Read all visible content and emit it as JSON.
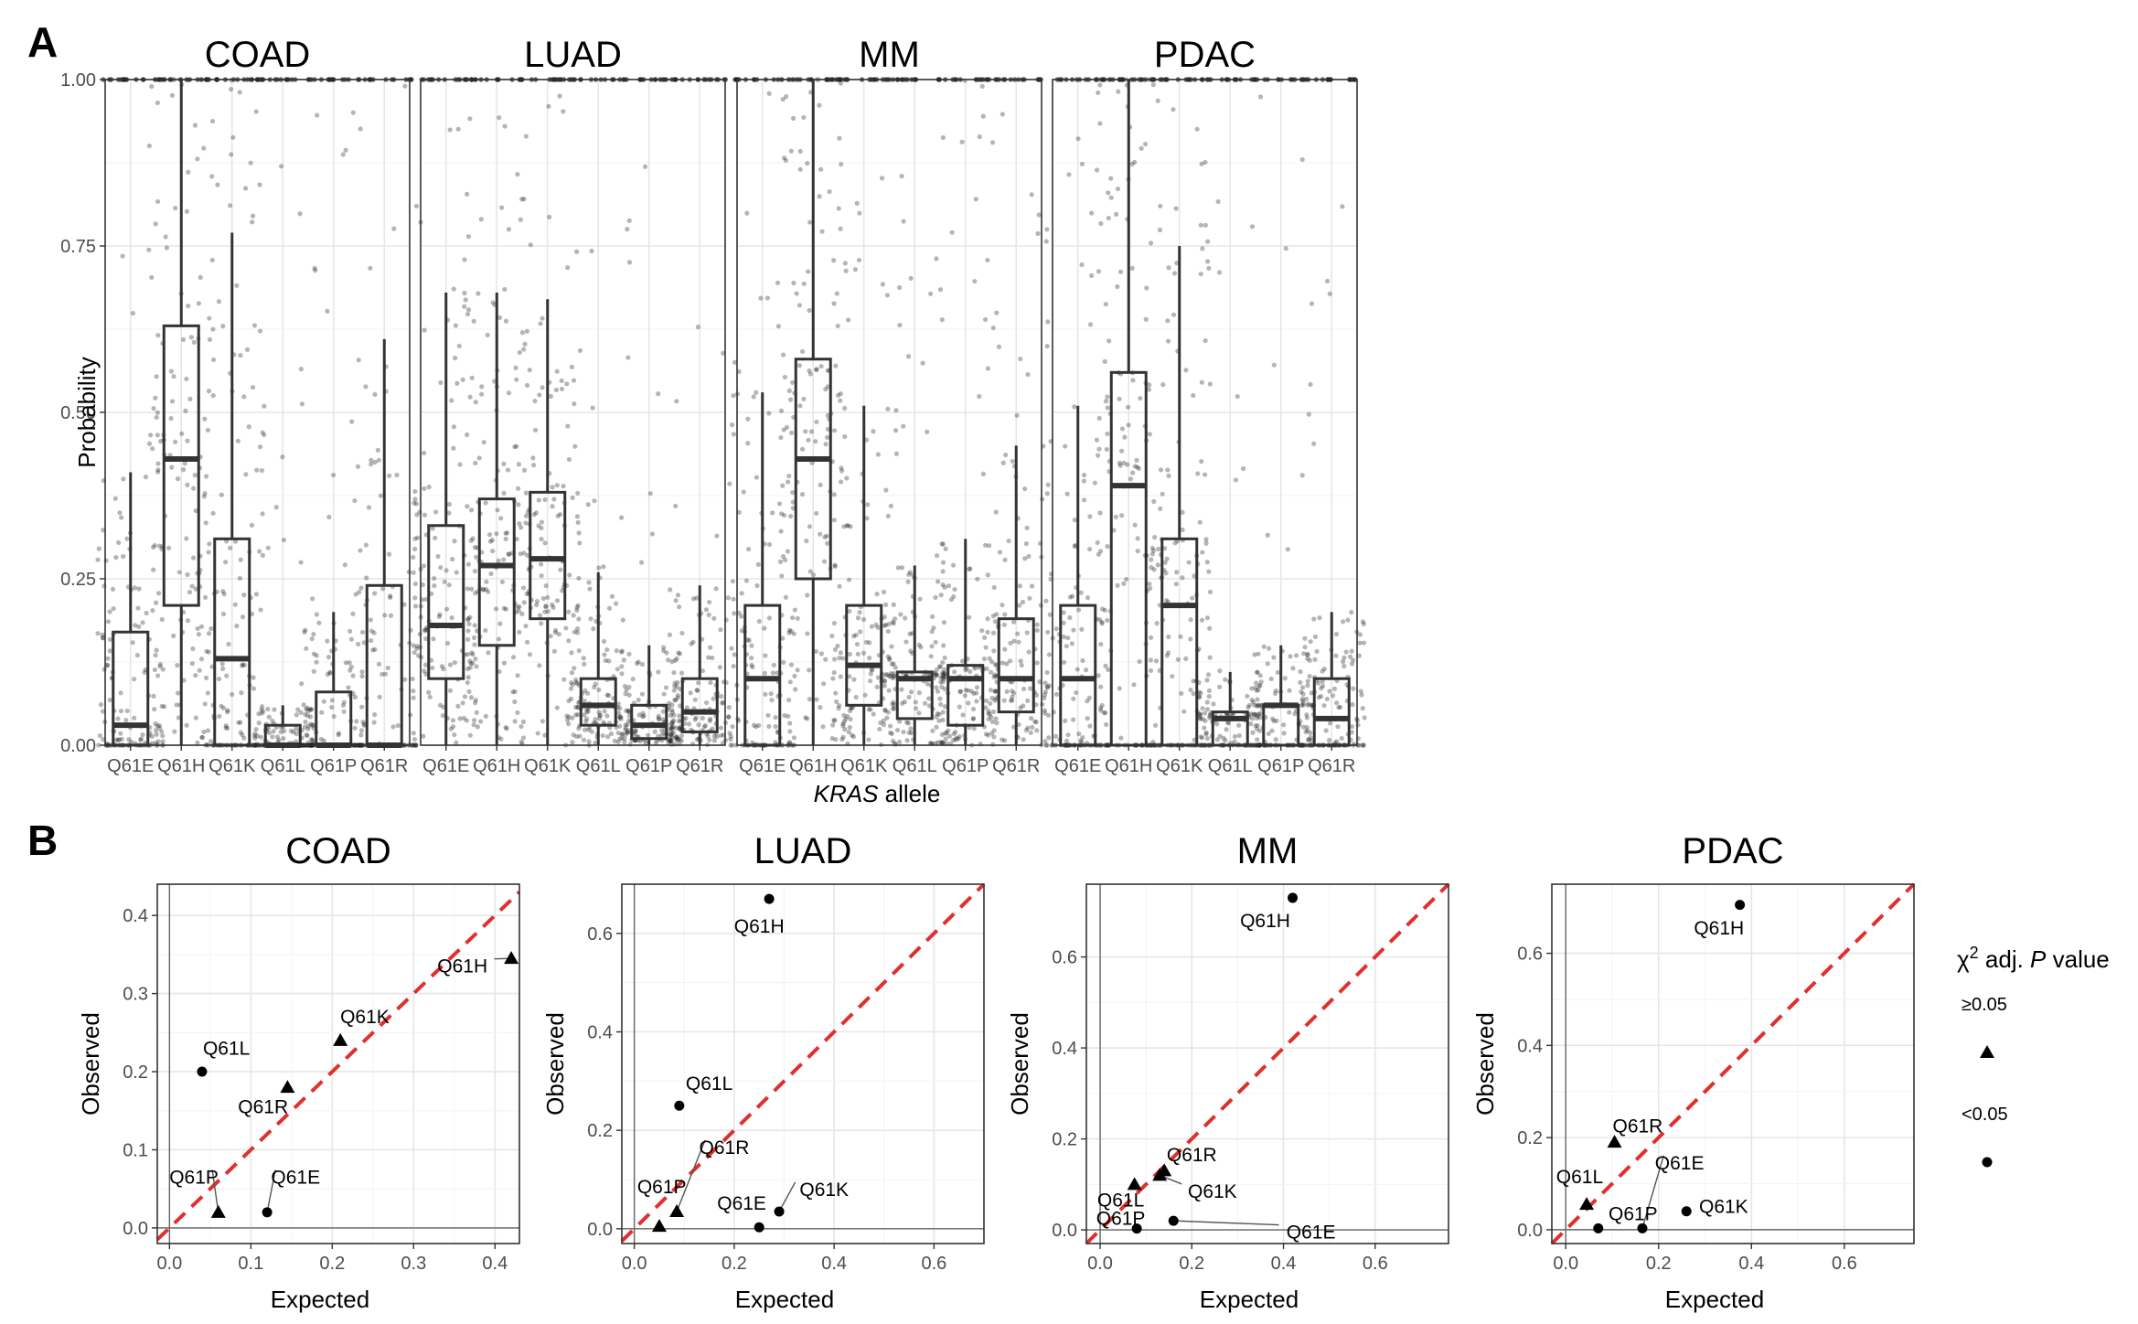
{
  "figure": {
    "panel_a_letter": "A",
    "panel_b_letter": "B"
  },
  "chart_data": [
    {
      "type": "box",
      "panel": "A",
      "facets": [
        "COAD",
        "LUAD",
        "MM",
        "PDAC"
      ],
      "categories": [
        "Q61E",
        "Q61H",
        "Q61K",
        "Q61L",
        "Q61P",
        "Q61R"
      ],
      "ylabel": "Probability",
      "xlabel_italic": "KRAS",
      "xlabel_rest": " allele",
      "ylim": [
        0,
        1
      ],
      "yticks": [
        0,
        0.25,
        0.5,
        0.75,
        1
      ],
      "ytick_labels": [
        "0.00",
        "0.25",
        "0.50",
        "0.75",
        "1.00"
      ],
      "grid": true,
      "jitter_points": true,
      "boxes": {
        "COAD": [
          {
            "q1": 0.0,
            "median": 0.03,
            "q3": 0.17,
            "whisker_low": 0.0,
            "whisker_high": 0.41
          },
          {
            "q1": 0.21,
            "median": 0.43,
            "q3": 0.63,
            "whisker_low": 0.0,
            "whisker_high": 1.0
          },
          {
            "q1": 0.0,
            "median": 0.13,
            "q3": 0.31,
            "whisker_low": 0.0,
            "whisker_high": 0.77
          },
          {
            "q1": 0.0,
            "median": 0.0,
            "q3": 0.03,
            "whisker_low": 0.0,
            "whisker_high": 0.06
          },
          {
            "q1": 0.0,
            "median": 0.0,
            "q3": 0.08,
            "whisker_low": 0.0,
            "whisker_high": 0.2
          },
          {
            "q1": 0.0,
            "median": 0.0,
            "q3": 0.24,
            "whisker_low": 0.0,
            "whisker_high": 0.61
          }
        ],
        "LUAD": [
          {
            "q1": 0.1,
            "median": 0.18,
            "q3": 0.33,
            "whisker_low": 0.0,
            "whisker_high": 0.68
          },
          {
            "q1": 0.15,
            "median": 0.27,
            "q3": 0.37,
            "whisker_low": 0.0,
            "whisker_high": 0.68
          },
          {
            "q1": 0.19,
            "median": 0.28,
            "q3": 0.38,
            "whisker_low": 0.0,
            "whisker_high": 0.67
          },
          {
            "q1": 0.03,
            "median": 0.06,
            "q3": 0.1,
            "whisker_low": 0.0,
            "whisker_high": 0.26
          },
          {
            "q1": 0.01,
            "median": 0.03,
            "q3": 0.06,
            "whisker_low": 0.0,
            "whisker_high": 0.15
          },
          {
            "q1": 0.02,
            "median": 0.05,
            "q3": 0.1,
            "whisker_low": 0.0,
            "whisker_high": 0.24
          }
        ],
        "MM": [
          {
            "q1": 0.0,
            "median": 0.1,
            "q3": 0.21,
            "whisker_low": 0.0,
            "whisker_high": 0.53
          },
          {
            "q1": 0.25,
            "median": 0.43,
            "q3": 0.58,
            "whisker_low": 0.0,
            "whisker_high": 1.0
          },
          {
            "q1": 0.06,
            "median": 0.12,
            "q3": 0.21,
            "whisker_low": 0.0,
            "whisker_high": 0.51
          },
          {
            "q1": 0.04,
            "median": 0.1,
            "q3": 0.11,
            "whisker_low": 0.0,
            "whisker_high": 0.27
          },
          {
            "q1": 0.03,
            "median": 0.1,
            "q3": 0.12,
            "whisker_low": 0.0,
            "whisker_high": 0.31
          },
          {
            "q1": 0.05,
            "median": 0.1,
            "q3": 0.19,
            "whisker_low": 0.0,
            "whisker_high": 0.45
          }
        ],
        "PDAC": [
          {
            "q1": 0.0,
            "median": 0.1,
            "q3": 0.21,
            "whisker_low": 0.0,
            "whisker_high": 0.51
          },
          {
            "q1": 0.0,
            "median": 0.39,
            "q3": 0.56,
            "whisker_low": 0.0,
            "whisker_high": 1.0
          },
          {
            "q1": 0.0,
            "median": 0.21,
            "q3": 0.31,
            "whisker_low": 0.0,
            "whisker_high": 0.75
          },
          {
            "q1": 0.0,
            "median": 0.04,
            "q3": 0.05,
            "whisker_low": 0.0,
            "whisker_high": 0.11
          },
          {
            "q1": 0.0,
            "median": 0.06,
            "q3": 0.06,
            "whisker_low": 0.0,
            "whisker_high": 0.15
          },
          {
            "q1": 0.0,
            "median": 0.04,
            "q3": 0.1,
            "whisker_low": 0.0,
            "whisker_high": 0.2
          }
        ]
      }
    },
    {
      "type": "scatter",
      "panel": "B",
      "xlabel": "Expected",
      "ylabel": "Observed",
      "reference_line": "y = x",
      "reference_line_color": "#e0302e",
      "legend": {
        "title_prefix": "χ",
        "title_sup": "2",
        "title_mid": " adj. ",
        "title_italic": "P",
        "title_suffix": " value",
        "entries": [
          {
            "label": "≥0.05",
            "shape": "triangle"
          },
          {
            "label": "<0.05",
            "shape": "circle"
          }
        ],
        "placement": "right"
      },
      "facets": [
        {
          "name": "COAD",
          "xlim": [
            -0.015,
            0.43
          ],
          "ylim": [
            -0.02,
            0.44
          ],
          "xticks": [
            0.0,
            0.1,
            0.2,
            0.3,
            0.4
          ],
          "xtick_labels": [
            "0.0",
            "0.1",
            "0.2",
            "0.3",
            "0.4"
          ],
          "yticks": [
            0.0,
            0.1,
            0.2,
            0.3,
            0.4
          ],
          "ytick_labels": [
            "0.0",
            "0.1",
            "0.2",
            "0.3",
            "0.4"
          ],
          "points": [
            {
              "label": "Q61H",
              "x": 0.42,
              "y": 0.345,
              "shape": "triangle",
              "lx": 0.36,
              "ly": 0.335
            },
            {
              "label": "Q61K",
              "x": 0.21,
              "y": 0.24,
              "shape": "triangle",
              "lx": 0.24,
              "ly": 0.27
            },
            {
              "label": "Q61L",
              "x": 0.04,
              "y": 0.2,
              "shape": "circle",
              "lx": 0.07,
              "ly": 0.23
            },
            {
              "label": "Q61R",
              "x": 0.145,
              "y": 0.18,
              "shape": "triangle",
              "lx": 0.115,
              "ly": 0.155
            },
            {
              "label": "Q61P",
              "x": 0.06,
              "y": 0.02,
              "shape": "triangle",
              "lx": 0.03,
              "ly": 0.065
            },
            {
              "label": "Q61E",
              "x": 0.12,
              "y": 0.02,
              "shape": "circle",
              "lx": 0.155,
              "ly": 0.065
            }
          ]
        },
        {
          "name": "LUAD",
          "xlim": [
            -0.025,
            0.7
          ],
          "ylim": [
            -0.03,
            0.7
          ],
          "xticks": [
            0.0,
            0.2,
            0.4,
            0.6
          ],
          "xtick_labels": [
            "0.0",
            "0.2",
            "0.4",
            "0.6"
          ],
          "yticks": [
            0.0,
            0.2,
            0.4,
            0.6
          ],
          "ytick_labels": [
            "0.0",
            "0.2",
            "0.4",
            "0.6"
          ],
          "points": [
            {
              "label": "Q61H",
              "x": 0.27,
              "y": 0.67,
              "shape": "circle",
              "lx": 0.25,
              "ly": 0.615
            },
            {
              "label": "Q61L",
              "x": 0.09,
              "y": 0.25,
              "shape": "circle",
              "lx": 0.15,
              "ly": 0.295
            },
            {
              "label": "Q61R",
              "x": 0.085,
              "y": 0.035,
              "shape": "triangle",
              "lx": 0.18,
              "ly": 0.165
            },
            {
              "label": "Q61P",
              "x": 0.05,
              "y": 0.005,
              "shape": "triangle",
              "lx": 0.055,
              "ly": 0.085
            },
            {
              "label": "Q61E",
              "x": 0.25,
              "y": 0.003,
              "shape": "circle",
              "lx": 0.215,
              "ly": 0.052
            },
            {
              "label": "Q61K",
              "x": 0.29,
              "y": 0.035,
              "shape": "circle",
              "lx": 0.38,
              "ly": 0.08
            }
          ]
        },
        {
          "name": "MM",
          "xlim": [
            -0.03,
            0.76
          ],
          "ylim": [
            -0.03,
            0.76
          ],
          "xticks": [
            0.0,
            0.2,
            0.4,
            0.6
          ],
          "xtick_labels": [
            "0.0",
            "0.2",
            "0.4",
            "0.6"
          ],
          "yticks": [
            0.0,
            0.2,
            0.4,
            0.6
          ],
          "ytick_labels": [
            "0.0",
            "0.2",
            "0.4",
            "0.6"
          ],
          "points": [
            {
              "label": "Q61H",
              "x": 0.42,
              "y": 0.73,
              "shape": "circle",
              "lx": 0.36,
              "ly": 0.68
            },
            {
              "label": "Q61R",
              "x": 0.14,
              "y": 0.13,
              "shape": "triangle",
              "lx": 0.2,
              "ly": 0.165
            },
            {
              "label": "Q61K",
              "x": 0.13,
              "y": 0.12,
              "shape": "triangle",
              "lx": 0.245,
              "ly": 0.085
            },
            {
              "label": "Q61L",
              "x": 0.075,
              "y": 0.1,
              "shape": "triangle",
              "lx": 0.045,
              "ly": 0.065
            },
            {
              "label": "Q61P",
              "x": 0.08,
              "y": 0.003,
              "shape": "circle",
              "lx": 0.045,
              "ly": 0.025
            },
            {
              "label": "Q61E",
              "x": 0.16,
              "y": 0.02,
              "shape": "circle",
              "lx": 0.46,
              "ly": -0.005
            }
          ]
        },
        {
          "name": "PDAC",
          "xlim": [
            -0.03,
            0.75
          ],
          "ylim": [
            -0.03,
            0.75
          ],
          "xticks": [
            0.0,
            0.2,
            0.4,
            0.6
          ],
          "xtick_labels": [
            "0.0",
            "0.2",
            "0.4",
            "0.6"
          ],
          "yticks": [
            0.0,
            0.2,
            0.4,
            0.6
          ],
          "ytick_labels": [
            "0.0",
            "0.2",
            "0.4",
            "0.6"
          ],
          "points": [
            {
              "label": "Q61H",
              "x": 0.375,
              "y": 0.705,
              "shape": "circle",
              "lx": 0.33,
              "ly": 0.655
            },
            {
              "label": "Q61R",
              "x": 0.105,
              "y": 0.19,
              "shape": "triangle",
              "lx": 0.155,
              "ly": 0.225
            },
            {
              "label": "Q61L",
              "x": 0.045,
              "y": 0.055,
              "shape": "triangle",
              "lx": 0.03,
              "ly": 0.115
            },
            {
              "label": "Q61E",
              "x": 0.165,
              "y": 0.003,
              "shape": "circle",
              "lx": 0.245,
              "ly": 0.145
            },
            {
              "label": "Q61P",
              "x": 0.07,
              "y": 0.003,
              "shape": "circle",
              "lx": 0.145,
              "ly": 0.035
            },
            {
              "label": "Q61K",
              "x": 0.26,
              "y": 0.04,
              "shape": "circle",
              "lx": 0.34,
              "ly": 0.05
            }
          ]
        }
      ]
    }
  ]
}
